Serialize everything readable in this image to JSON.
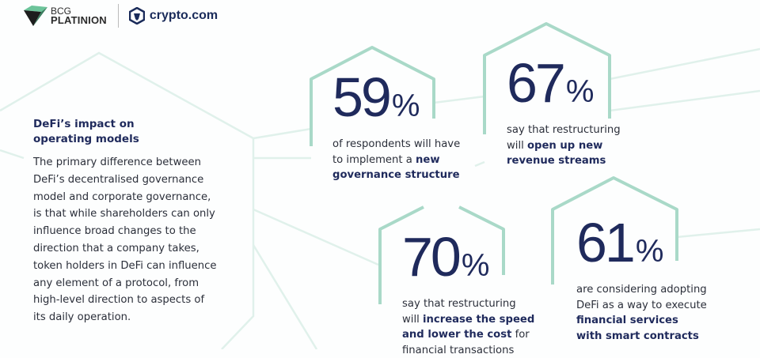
{
  "logos": {
    "partner1": {
      "line1": "BCG",
      "line2": "PLATINION"
    },
    "partner2": "crypto.com"
  },
  "intro": {
    "title": "DeFi’s impact on operating models",
    "body": "The primary difference between\nDeFi’s decentralised governance\nmodel and corporate governance,\nis that while shareholders can only\ninfluence broad changes to the\ndirection that a company takes,\ntoken holders in DeFi can influence\nany element of a protocol, from\nhigh-level direction to aspects of\nits daily operation."
  },
  "stats": [
    {
      "value": "59",
      "unit": "%",
      "lines": [
        [
          {
            "t": "of respondents will have"
          }
        ],
        [
          {
            "t": "to implement a "
          },
          {
            "t": "new",
            "b": true
          }
        ],
        [
          {
            "t": "governance structure",
            "b": true
          }
        ]
      ]
    },
    {
      "value": "67",
      "unit": "%",
      "lines": [
        [
          {
            "t": "say that restructuring"
          }
        ],
        [
          {
            "t": "will "
          },
          {
            "t": "open up new",
            "b": true
          }
        ],
        [
          {
            "t": "revenue streams",
            "b": true
          }
        ]
      ]
    },
    {
      "value": "70",
      "unit": "%",
      "lines": [
        [
          {
            "t": "say that restructuring"
          }
        ],
        [
          {
            "t": "will "
          },
          {
            "t": "increase the speed",
            "b": true
          }
        ],
        [
          {
            "t": "and lower the cost",
            "b": true
          },
          {
            "t": " for"
          }
        ],
        [
          {
            "t": "financial transactions"
          }
        ]
      ]
    },
    {
      "value": "61",
      "unit": "%",
      "lines": [
        [
          {
            "t": "are considering adopting"
          }
        ],
        [
          {
            "t": "DeFi as a way to execute"
          }
        ],
        [
          {
            "t": "financial services",
            "b": true
          }
        ],
        [
          {
            "t": "with smart contracts",
            "b": true
          }
        ]
      ]
    }
  ],
  "colors": {
    "accent": "#a9d9c8",
    "text": "#1f2a5c",
    "faint_lines": "#dcefe8"
  }
}
